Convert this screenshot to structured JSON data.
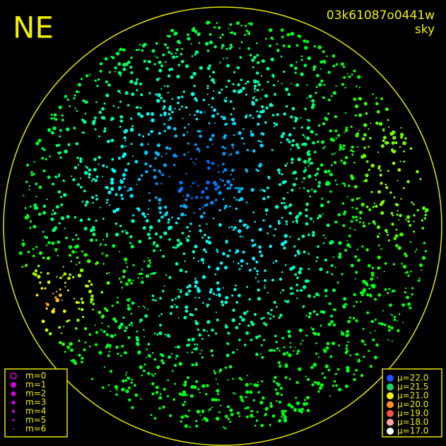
{
  "header": {
    "direction": "NE",
    "frame_id": "03k61087o0441w",
    "filter": "sky"
  },
  "magnitude_legend": {
    "items": [
      "m=0",
      "m=1",
      "m=2",
      "m=3",
      "m=4",
      "m=5",
      "m=6"
    ],
    "color": "#e000e0"
  },
  "brightness_legend": {
    "items": [
      {
        "label": "μ=22.0",
        "color": "#2050ff"
      },
      {
        "label": "μ=21.5",
        "color": "#20d060"
      },
      {
        "label": "μ=21.0",
        "color": "#f0f000"
      },
      {
        "label": "μ=20.0",
        "color": "#ff9020"
      },
      {
        "label": "μ=19.0",
        "color": "#ff5040"
      },
      {
        "label": "μ=18.0",
        "color": "#ffa8a8"
      },
      {
        "label": "μ=17.0",
        "color": "#ffffff"
      }
    ]
  }
}
